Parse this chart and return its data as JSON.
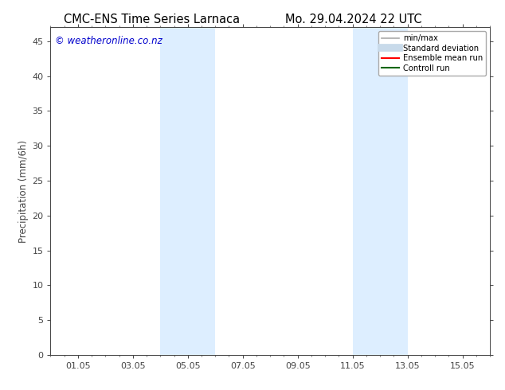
{
  "title_left": "CMC-ENS Time Series Larnaca",
  "title_right": "Mo. 29.04.2024 22 UTC",
  "ylabel": "Precipitation (mm/6h)",
  "ylim": [
    0,
    47
  ],
  "yticks": [
    0,
    5,
    10,
    15,
    20,
    25,
    30,
    35,
    40,
    45
  ],
  "xlim": [
    0.0,
    16.0
  ],
  "xtick_labels": [
    "01.05",
    "03.05",
    "05.05",
    "07.05",
    "09.05",
    "11.05",
    "13.05",
    "15.05"
  ],
  "xtick_positions": [
    1.0,
    3.0,
    5.0,
    7.0,
    9.0,
    11.0,
    13.0,
    15.0
  ],
  "shaded_bands": [
    {
      "xmin": 4.0,
      "xmax": 6.0
    },
    {
      "xmin": 11.0,
      "xmax": 13.0
    }
  ],
  "shade_color": "#ddeeff",
  "background_color": "#ffffff",
  "watermark_text": "© weatheronline.co.nz",
  "watermark_color": "#0000cc",
  "watermark_fontsize": 8.5,
  "legend_items": [
    {
      "label": "min/max",
      "color": "#aaaaaa",
      "lw": 1.2,
      "style": "solid"
    },
    {
      "label": "Standard deviation",
      "color": "#c8daea",
      "lw": 7,
      "style": "solid"
    },
    {
      "label": "Ensemble mean run",
      "color": "#ff0000",
      "lw": 1.5,
      "style": "solid"
    },
    {
      "label": "Controll run",
      "color": "#006600",
      "lw": 1.5,
      "style": "solid"
    }
  ],
  "title_fontsize": 10.5,
  "axis_label_fontsize": 8.5,
  "tick_fontsize": 8,
  "spine_color": "#444444",
  "tick_color": "#444444"
}
